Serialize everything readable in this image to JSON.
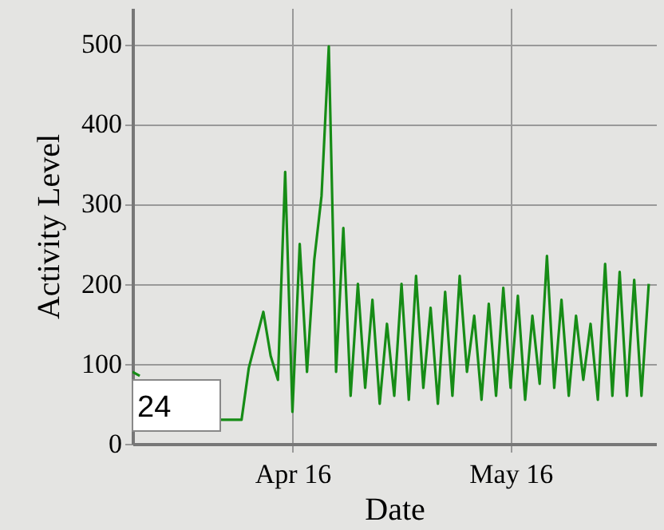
{
  "chart_data": {
    "type": "line",
    "xlabel": "Date",
    "ylabel": "Activity Level",
    "annotations": [
      "24"
    ],
    "x": [
      "--03-25",
      "--03-26",
      "--03-27",
      "--03-28",
      "--03-29",
      "--03-30",
      "--03-31",
      "--04-01",
      "--04-02",
      "--04-03",
      "--04-04",
      "--04-05",
      "--04-06",
      "--04-07",
      "--04-08",
      "--04-09",
      "--04-10",
      "--04-11",
      "--04-12",
      "--04-13",
      "--04-14",
      "--04-15",
      "--04-16",
      "--04-17",
      "--04-18",
      "--04-19",
      "--04-20",
      "--04-21",
      "--04-22",
      "--04-23",
      "--04-24",
      "--04-25",
      "--04-26",
      "--04-27",
      "--04-28",
      "--04-29",
      "--04-30",
      "--05-01",
      "--05-02",
      "--05-03",
      "--05-04",
      "--05-05",
      "--05-06",
      "--05-07",
      "--05-08",
      "--05-09",
      "--05-10",
      "--05-11",
      "--05-12",
      "--05-13",
      "--05-14",
      "--05-15",
      "--05-16",
      "--05-17",
      "--05-18",
      "--05-19",
      "--05-20",
      "--05-21",
      "--05-22",
      "--05-23",
      "--05-24",
      "--05-25",
      "--05-26",
      "--05-27",
      "--05-28",
      "--05-29",
      "--05-30",
      "--05-31",
      "--06-01",
      "--06-02",
      "--06-03",
      "--06-04"
    ],
    "series": [
      {
        "color": "#168c16",
        "values": [
          90,
          85,
          null,
          null,
          null,
          null,
          null,
          null,
          null,
          null,
          null,
          null,
          30,
          30,
          30,
          30,
          95,
          130,
          165,
          110,
          80,
          340,
          40,
          250,
          90,
          230,
          310,
          497,
          90,
          270,
          60,
          200,
          70,
          180,
          50,
          150,
          60,
          200,
          55,
          210,
          70,
          170,
          50,
          190,
          60,
          210,
          90,
          160,
          55,
          175,
          60,
          195,
          70,
          185,
          55,
          160,
          75,
          235,
          70,
          180,
          60,
          160,
          80,
          150,
          55,
          225,
          60,
          215,
          60,
          205,
          60,
          200
        ]
      }
    ],
    "xlim": [
      "--03-25",
      "--06-05"
    ],
    "xticks": [
      {
        "value": "--04-16",
        "label": "Apr 16"
      },
      {
        "value": "--05-16",
        "label": "May 16"
      }
    ],
    "ylim": [
      0,
      545
    ],
    "yticks": [
      0,
      100,
      200,
      300,
      400,
      500
    ],
    "grid": true,
    "marker": "none",
    "line_style": "solid"
  }
}
